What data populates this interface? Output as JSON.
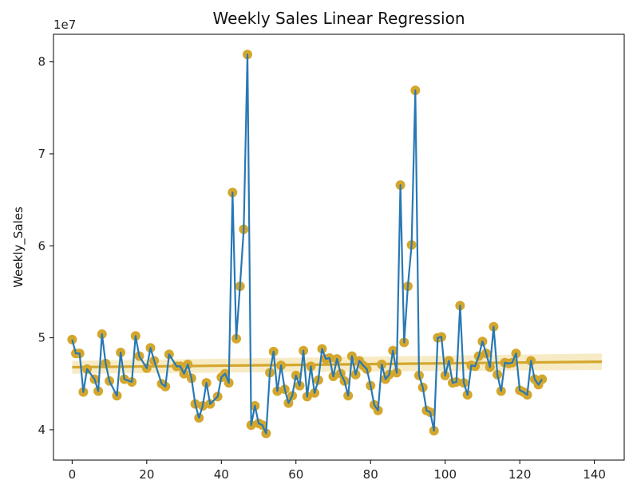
{
  "chart_data": {
    "type": "line",
    "title": "Weekly Sales Linear Regression",
    "xlabel": "",
    "ylabel": "Weekly_Sales",
    "y_multiplier_label": "1e7",
    "y_multiplier": 10000000,
    "xlim": [
      -5,
      148
    ],
    "ylim": [
      36700000,
      83000000
    ],
    "x_ticks": [
      0,
      20,
      40,
      60,
      80,
      100,
      120,
      140
    ],
    "x_tick_labels": [
      "0",
      "20",
      "40",
      "60",
      "80",
      "100",
      "120",
      "140"
    ],
    "y_ticks": [
      40000000,
      50000000,
      60000000,
      70000000,
      80000000
    ],
    "y_tick_labels": [
      "4",
      "5",
      "6",
      "7",
      "8"
    ],
    "grid": false,
    "colors": {
      "line": "#2878b5",
      "scatter": "#d4a72c",
      "regression": "#d4a72c",
      "band": "#f5e6b8"
    },
    "regression": {
      "x": [
        0,
        142
      ],
      "y": [
        46800000,
        47400000
      ],
      "ci_half_width": [
        700000,
        900000
      ]
    },
    "series": [
      {
        "values": [
          49800000,
          48300000,
          48300000,
          44100000,
          46600000,
          45500000,
          44200000,
          50400000,
          47200000,
          45300000,
          43700000,
          48400000,
          45500000,
          45200000,
          50200000,
          48000000,
          46700000,
          48900000,
          47500000,
          45000000,
          44700000,
          48200000,
          46900000,
          46900000,
          46100000,
          47100000,
          45600000,
          42800000,
          41300000,
          42600000,
          45100000,
          42800000,
          43600000,
          45700000,
          46100000,
          45100000,
          65800000,
          49900000,
          55600000,
          61800000,
          80800000,
          40500000,
          42600000,
          40700000,
          40500000,
          39600000,
          46200000,
          48500000,
          44200000,
          47000000,
          44400000,
          42900000,
          43700000,
          45900000,
          44800000,
          48600000,
          43600000,
          46900000,
          44000000,
          45400000,
          48800000,
          47700000,
          47800000,
          45800000,
          47700000,
          46100000,
          45300000,
          43700000,
          48000000,
          46000000,
          47500000,
          47000000,
          46600000,
          44800000,
          42700000,
          42100000,
          47100000,
          45500000,
          46000000,
          48600000,
          46200000,
          66600000,
          49500000,
          55600000,
          60100000,
          76900000,
          45900000,
          44600000,
          42100000,
          41900000,
          39900000,
          50000000,
          50100000,
          45900000,
          47500000,
          45100000,
          45200000,
          53500000,
          45100000,
          43800000,
          47000000,
          46900000,
          48000000,
          49600000,
          48300000,
          46800000,
          51200000,
          46000000,
          44200000,
          47300000,
          47200000,
          47300000,
          48300000,
          44300000,
          44100000,
          43800000,
          47500000,
          45500000,
          44900000,
          45500000
        ],
        "x": [
          0,
          1,
          2,
          3,
          4,
          6,
          7,
          8,
          9,
          10,
          12,
          13,
          14,
          16,
          17,
          18,
          20,
          21,
          22,
          24,
          25,
          26,
          28,
          29,
          30,
          31,
          32,
          33,
          34,
          35,
          36,
          37,
          39,
          40,
          41,
          42,
          43,
          44,
          45,
          46,
          47,
          48,
          49,
          50,
          51,
          52,
          53,
          54,
          55,
          56,
          57,
          58,
          59,
          60,
          61,
          62,
          63,
          64,
          65,
          66,
          67,
          68,
          69,
          70,
          71,
          72,
          73,
          74,
          75,
          76,
          77,
          78,
          79,
          80,
          81,
          82,
          83,
          84,
          85,
          86,
          87,
          88,
          89,
          90,
          91,
          92,
          93,
          94,
          95,
          96,
          97,
          98,
          99,
          100,
          101,
          102,
          103,
          104,
          105,
          106,
          107,
          108,
          109,
          110,
          111,
          112,
          113,
          114,
          115,
          116,
          117,
          118,
          119,
          120,
          121,
          122,
          123,
          124,
          125,
          126
        ]
      }
    ]
  }
}
